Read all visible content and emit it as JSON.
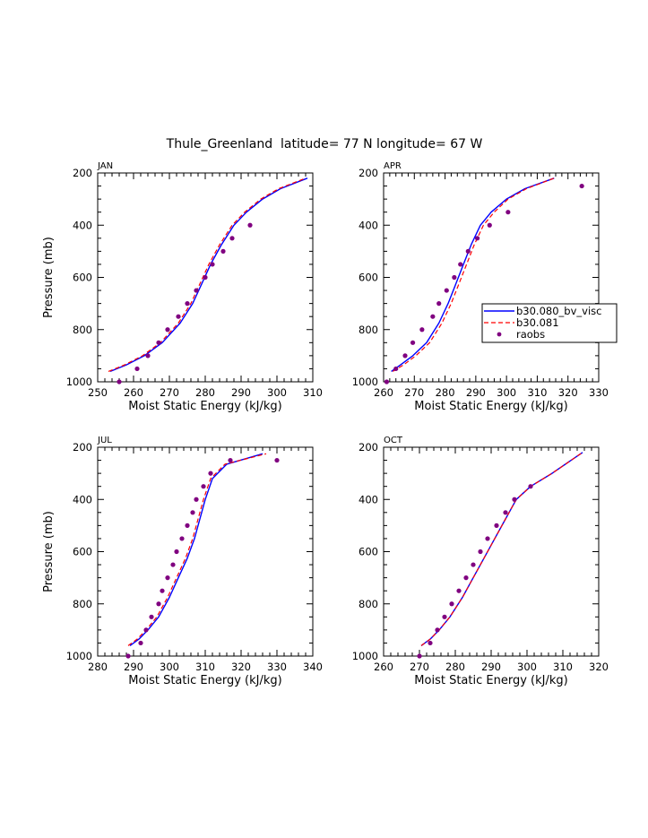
{
  "figure_title": "Thule_Greenland  latitude= 77 N longitude= 67 W",
  "colors": {
    "model1": "#0000ff",
    "model2": "#ff0000",
    "obs": "#800080"
  },
  "legend": {
    "entries": [
      {
        "label": "b30.080_bv_visc",
        "style": "solid"
      },
      {
        "label": "b30.081",
        "style": "dashed"
      },
      {
        "label": "raobs",
        "style": "dot"
      }
    ]
  },
  "chart_data": [
    {
      "type": "line",
      "title": "JAN",
      "xlabel": "Moist Static Energy (kJ/kg)",
      "ylabel": "Pressure (mb)",
      "xlim": [
        250,
        310
      ],
      "ylim": [
        1000,
        200
      ],
      "xticks": [
        250,
        260,
        270,
        280,
        290,
        300,
        310
      ],
      "yticks": [
        200,
        400,
        600,
        800,
        1000
      ],
      "series": [
        {
          "name": "b30.080_bv_visc",
          "x": [
            253.5,
            258,
            263,
            268,
            273,
            276.5,
            279,
            281.5,
            284.5,
            288,
            291.5,
            296,
            301,
            308.5
          ],
          "y": [
            960,
            935,
            900,
            850,
            775,
            700,
            625,
            550,
            475,
            400,
            350,
            300,
            260,
            220
          ]
        },
        {
          "name": "b30.081",
          "x": [
            253,
            257.5,
            262.5,
            267.5,
            272.5,
            276,
            278.5,
            281,
            284,
            287.5,
            291,
            295.5,
            300.5,
            308
          ],
          "y": [
            960,
            935,
            900,
            850,
            775,
            700,
            625,
            550,
            475,
            400,
            350,
            300,
            260,
            220
          ]
        },
        {
          "name": "raobs",
          "x": [
            256,
            261,
            264,
            267,
            269.5,
            272.5,
            275,
            277.5,
            280,
            282,
            285,
            287.5,
            292.5
          ],
          "y": [
            1000,
            950,
            900,
            850,
            800,
            750,
            700,
            650,
            600,
            550,
            500,
            450,
            400
          ]
        }
      ]
    },
    {
      "type": "line",
      "title": "APR",
      "xlabel": "Moist Static Energy (kJ/kg)",
      "ylabel": "",
      "xlim": [
        260,
        330
      ],
      "ylim": [
        1000,
        200
      ],
      "xticks": [
        260,
        270,
        280,
        290,
        300,
        310,
        320,
        330
      ],
      "yticks": [
        200,
        400,
        600,
        800,
        1000
      ],
      "series": [
        {
          "name": "b30.080_bv_visc",
          "x": [
            262.5,
            265.5,
            269.5,
            274,
            278,
            281,
            283.5,
            286,
            288.5,
            291.5,
            295,
            300,
            306,
            315.5
          ],
          "y": [
            960,
            935,
            900,
            850,
            775,
            700,
            625,
            550,
            475,
            400,
            350,
            300,
            260,
            220
          ]
        },
        {
          "name": "b30.081",
          "x": [
            263,
            266.5,
            270.5,
            275,
            279,
            282,
            284.5,
            287,
            289.5,
            292.5,
            296,
            300.5,
            306.5,
            315.5
          ],
          "y": [
            960,
            935,
            900,
            850,
            775,
            700,
            625,
            550,
            475,
            400,
            350,
            300,
            260,
            220
          ]
        },
        {
          "name": "raobs",
          "x": [
            261,
            264,
            267,
            269.5,
            272.5,
            276,
            278,
            280.5,
            283,
            285,
            287.5,
            290.5,
            294.5,
            300.5,
            324.5
          ],
          "y": [
            1000,
            950,
            900,
            850,
            800,
            750,
            700,
            650,
            600,
            550,
            500,
            450,
            400,
            350,
            250
          ]
        }
      ]
    },
    {
      "type": "line",
      "title": "JUL",
      "xlabel": "Moist Static Energy (kJ/kg)",
      "ylabel": "Pressure (mb)",
      "xlim": [
        280,
        340
      ],
      "ylim": [
        1000,
        200
      ],
      "xticks": [
        280,
        290,
        300,
        310,
        320,
        330,
        340
      ],
      "yticks": [
        200,
        400,
        600,
        800,
        1000
      ],
      "series": [
        {
          "name": "b30.080_bv_visc",
          "x": [
            289,
            291.5,
            294,
            297,
            300,
            302.5,
            305,
            307,
            308.5,
            310,
            312,
            316,
            326
          ],
          "y": [
            960,
            935,
            900,
            850,
            775,
            700,
            625,
            550,
            475,
            400,
            320,
            265,
            225
          ]
        },
        {
          "name": "b30.081",
          "x": [
            288.5,
            291,
            293.5,
            296.5,
            299.5,
            302,
            304.5,
            306.5,
            308,
            309.5,
            311.5,
            315.5,
            327
          ],
          "y": [
            960,
            935,
            900,
            850,
            775,
            700,
            625,
            550,
            475,
            400,
            320,
            265,
            225
          ]
        },
        {
          "name": "raobs",
          "x": [
            288.5,
            292,
            293.5,
            295,
            297,
            298,
            299.5,
            301,
            302,
            303.5,
            305,
            306.5,
            307.5,
            309.5,
            311.5,
            317,
            330
          ],
          "y": [
            1000,
            950,
            900,
            850,
            800,
            750,
            700,
            650,
            600,
            550,
            500,
            450,
            400,
            350,
            300,
            250,
            250
          ]
        }
      ]
    },
    {
      "type": "line",
      "title": "OCT",
      "xlabel": "Moist Static Energy (kJ/kg)",
      "ylabel": "",
      "xlim": [
        260,
        320
      ],
      "ylim": [
        1000,
        200
      ],
      "xticks": [
        260,
        270,
        280,
        290,
        300,
        310,
        320
      ],
      "yticks": [
        200,
        400,
        600,
        800,
        1000
      ],
      "series": [
        {
          "name": "b30.080_bv_visc",
          "x": [
            270.5,
            273,
            275.5,
            278.5,
            282,
            285,
            288,
            291,
            294,
            297,
            301,
            307,
            315.5
          ],
          "y": [
            960,
            935,
            900,
            850,
            775,
            700,
            625,
            550,
            475,
            400,
            350,
            300,
            220
          ]
        },
        {
          "name": "b30.081",
          "x": [
            270.5,
            273,
            275.5,
            278.5,
            282,
            285,
            288,
            291,
            294,
            297,
            301,
            307,
            315.5
          ],
          "y": [
            960,
            935,
            900,
            850,
            775,
            700,
            625,
            550,
            475,
            400,
            350,
            300,
            220
          ]
        },
        {
          "name": "raobs",
          "x": [
            270,
            273,
            275,
            277,
            279,
            281,
            283,
            285,
            287,
            289,
            291.5,
            294,
            296.5,
            301
          ],
          "y": [
            1000,
            950,
            900,
            850,
            800,
            750,
            700,
            650,
            600,
            550,
            500,
            450,
            400,
            350
          ]
        }
      ]
    }
  ]
}
